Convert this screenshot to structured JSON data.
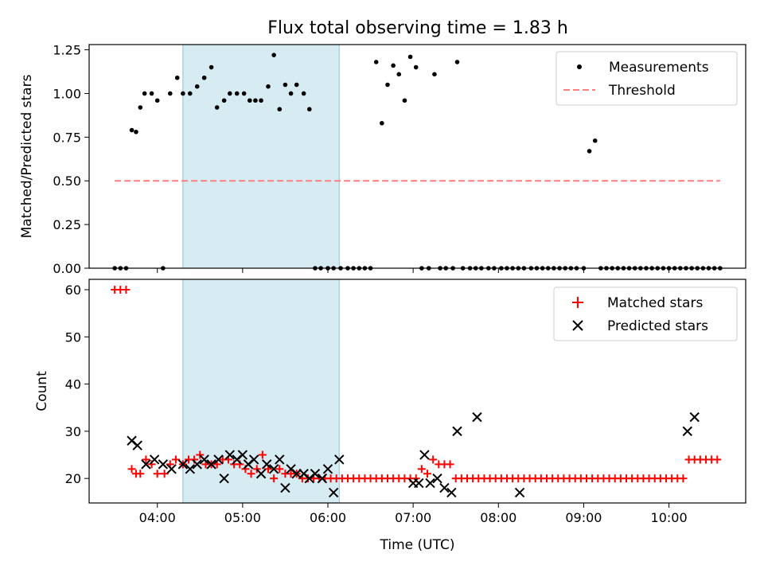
{
  "chart_data": [
    {
      "type": "scatter",
      "title": "Flux total observing time = 1.83 h",
      "xlabel": "",
      "ylabel": "Matched/Predicted stars",
      "xlim": [
        "03:12",
        "10:54"
      ],
      "ylim": [
        0,
        1.28
      ],
      "yticks": [
        0,
        0.25,
        0.5,
        0.75,
        1.0,
        1.25
      ],
      "ytick_labels": [
        "0.00",
        "0.25",
        "0.50",
        "0.75",
        "1.00",
        "1.25"
      ],
      "xticks": [
        "04:00",
        "05:00",
        "06:00",
        "07:00",
        "08:00",
        "09:00",
        "10:00"
      ],
      "highlight_span": [
        "04:18",
        "06:08"
      ],
      "legend": {
        "location": "upper right"
      },
      "series": [
        {
          "name": "Measurements",
          "style": "dots",
          "color": "#000000",
          "x": [
            "03:30",
            "03:34",
            "03:38",
            "03:42",
            "03:45",
            "03:48",
            "03:51",
            "03:56",
            "04:00",
            "04:04",
            "04:09",
            "04:14",
            "04:18",
            "04:23",
            "04:28",
            "04:33",
            "04:38",
            "04:42",
            "04:47",
            "04:51",
            "04:56",
            "05:01",
            "05:05",
            "05:09",
            "05:13",
            "05:18",
            "05:22",
            "05:26",
            "05:30",
            "05:34",
            "05:38",
            "05:43",
            "05:47",
            "05:51",
            "05:55",
            "06:00",
            "06:04",
            "06:09",
            "06:14",
            "06:18",
            "06:22",
            "06:26",
            "06:30",
            "06:34",
            "06:38",
            "06:42",
            "06:46",
            "06:50",
            "06:54",
            "06:58",
            "07:02",
            "07:06",
            "07:11",
            "07:15",
            "07:19",
            "07:23",
            "07:28",
            "07:31",
            "07:35",
            "07:40",
            "07:44",
            "07:48",
            "07:53",
            "07:57",
            "08:02",
            "08:06",
            "08:10",
            "08:14",
            "08:18",
            "08:23",
            "08:27",
            "08:31",
            "08:35",
            "08:39",
            "08:43",
            "08:47",
            "08:51",
            "08:55",
            "09:00",
            "09:04",
            "09:08",
            "09:12",
            "09:16",
            "09:20",
            "09:24",
            "09:28",
            "09:32",
            "09:36",
            "09:40",
            "09:44",
            "09:48",
            "09:52",
            "09:56",
            "10:00",
            "10:04",
            "10:08",
            "10:12",
            "10:16",
            "10:20",
            "10:24",
            "10:28",
            "10:32",
            "10:36"
          ],
          "values": [
            0,
            0,
            0,
            0.79,
            0.78,
            0.92,
            1.0,
            1.0,
            0.96,
            0,
            1.0,
            1.09,
            1.0,
            1.0,
            1.04,
            1.09,
            1.15,
            0.92,
            0.96,
            1.0,
            1.0,
            1.0,
            0.96,
            0.96,
            0.96,
            1.04,
            1.22,
            0.91,
            1.05,
            1.0,
            1.05,
            1.0,
            0.91,
            0,
            0,
            0,
            0,
            0,
            0,
            0,
            0,
            0,
            0,
            1.18,
            0.83,
            1.05,
            1.16,
            1.11,
            0.96,
            1.21,
            1.15,
            0,
            0,
            1.11,
            0,
            0,
            0,
            1.18,
            0,
            0,
            0,
            0,
            0,
            0,
            0,
            0,
            0,
            0,
            0,
            0,
            0,
            0,
            0,
            0,
            0,
            0,
            0,
            0,
            0,
            0.67,
            0.73,
            0,
            0,
            0,
            0,
            0,
            0,
            0,
            0,
            0,
            0,
            0,
            0,
            0,
            0,
            0,
            0,
            0,
            0,
            0,
            0,
            0,
            0
          ]
        },
        {
          "name": "Threshold",
          "style": "dashed",
          "color": "#ff7f7f",
          "x": [
            "03:30",
            "10:36"
          ],
          "values": [
            0.5,
            0.5
          ]
        }
      ]
    },
    {
      "type": "scatter",
      "title": "",
      "xlabel": "Time (UTC)",
      "ylabel": "Count",
      "xlim": [
        "03:12",
        "10:54"
      ],
      "ylim": [
        14.8,
        62.2
      ],
      "yticks": [
        20,
        30,
        40,
        50,
        60
      ],
      "ytick_labels": [
        "20",
        "30",
        "40",
        "50",
        "60"
      ],
      "xticks": [
        "04:00",
        "05:00",
        "06:00",
        "07:00",
        "08:00",
        "09:00",
        "10:00"
      ],
      "highlight_span": [
        "04:18",
        "06:08"
      ],
      "legend": {
        "location": "upper right"
      },
      "series": [
        {
          "name": "Matched stars",
          "style": "plus",
          "color": "#ff0000",
          "x": [
            "03:30",
            "03:34",
            "03:38",
            "03:42",
            "03:45",
            "03:48",
            "03:52",
            "03:56",
            "04:00",
            "04:05",
            "04:09",
            "04:13",
            "04:18",
            "04:22",
            "04:26",
            "04:30",
            "04:34",
            "04:38",
            "04:42",
            "04:46",
            "04:50",
            "04:54",
            "04:58",
            "05:02",
            "05:06",
            "05:10",
            "05:14",
            "05:18",
            "05:22",
            "05:26",
            "05:30",
            "05:34",
            "05:38",
            "05:42",
            "05:46",
            "05:50",
            "05:54",
            "05:58",
            "06:02",
            "06:06",
            "06:10",
            "06:14",
            "06:18",
            "06:22",
            "06:26",
            "06:30",
            "06:34",
            "06:38",
            "06:42",
            "06:46",
            "06:50",
            "06:54",
            "06:58",
            "07:02",
            "07:06",
            "07:10",
            "07:14",
            "07:18",
            "07:22",
            "07:26",
            "07:30",
            "07:34",
            "07:38",
            "07:42",
            "07:46",
            "07:50",
            "07:54",
            "07:58",
            "08:02",
            "08:06",
            "08:10",
            "08:14",
            "08:18",
            "08:22",
            "08:26",
            "08:30",
            "08:34",
            "08:38",
            "08:42",
            "08:46",
            "08:50",
            "08:54",
            "08:58",
            "09:02",
            "09:06",
            "09:10",
            "09:14",
            "09:18",
            "09:22",
            "09:26",
            "09:30",
            "09:34",
            "09:38",
            "09:42",
            "09:46",
            "09:50",
            "09:54",
            "09:58",
            "10:02",
            "10:06",
            "10:10",
            "10:14",
            "10:18",
            "10:22",
            "10:26",
            "10:30",
            "10:34"
          ],
          "values": [
            60,
            60,
            60,
            22,
            21,
            21,
            24,
            23,
            21,
            21,
            23,
            24,
            23,
            24,
            24,
            25,
            23,
            23,
            23,
            24,
            24,
            23,
            23,
            22,
            21,
            22,
            25,
            22,
            20,
            22,
            21,
            21,
            21,
            20,
            20,
            20,
            20,
            20,
            20,
            20,
            20,
            20,
            20,
            20,
            20,
            20,
            20,
            20,
            20,
            20,
            20,
            20,
            20,
            20,
            22,
            21,
            24,
            23,
            23,
            23,
            20,
            20,
            20,
            20,
            20,
            20,
            20,
            20,
            20,
            20,
            20,
            20,
            20,
            20,
            20,
            20,
            20,
            20,
            20,
            20,
            20,
            20,
            20,
            20,
            20,
            20,
            20,
            20,
            20,
            20,
            20,
            20,
            20,
            20,
            20,
            20,
            20,
            20,
            20,
            20,
            20,
            24,
            24,
            24,
            24,
            24,
            24
          ]
        },
        {
          "name": "Predicted stars",
          "style": "x",
          "color": "#000000",
          "x": [
            "03:42",
            "03:46",
            "03:52",
            "03:58",
            "04:04",
            "04:10",
            "04:18",
            "04:23",
            "04:28",
            "04:33",
            "04:38",
            "04:43",
            "04:47",
            "04:51",
            "04:56",
            "05:00",
            "05:04",
            "05:08",
            "05:13",
            "05:17",
            "05:22",
            "05:26",
            "05:30",
            "05:34",
            "05:38",
            "05:43",
            "05:47",
            "05:51",
            "05:56",
            "06:00",
            "06:04",
            "06:08",
            "07:00",
            "07:04",
            "07:08",
            "07:12",
            "07:17",
            "07:22",
            "07:27",
            "07:31",
            "07:45",
            "08:15",
            "10:13",
            "10:18"
          ],
          "values": [
            28,
            27,
            23,
            24,
            23,
            22,
            23,
            22,
            23,
            24,
            23,
            24,
            20,
            25,
            24,
            25,
            23,
            24,
            21,
            23,
            22,
            24,
            18,
            22,
            21,
            21,
            20,
            21,
            20,
            22,
            17,
            24,
            19,
            19,
            25,
            19,
            20,
            18,
            17,
            30,
            33,
            17,
            30,
            33
          ]
        }
      ]
    }
  ]
}
